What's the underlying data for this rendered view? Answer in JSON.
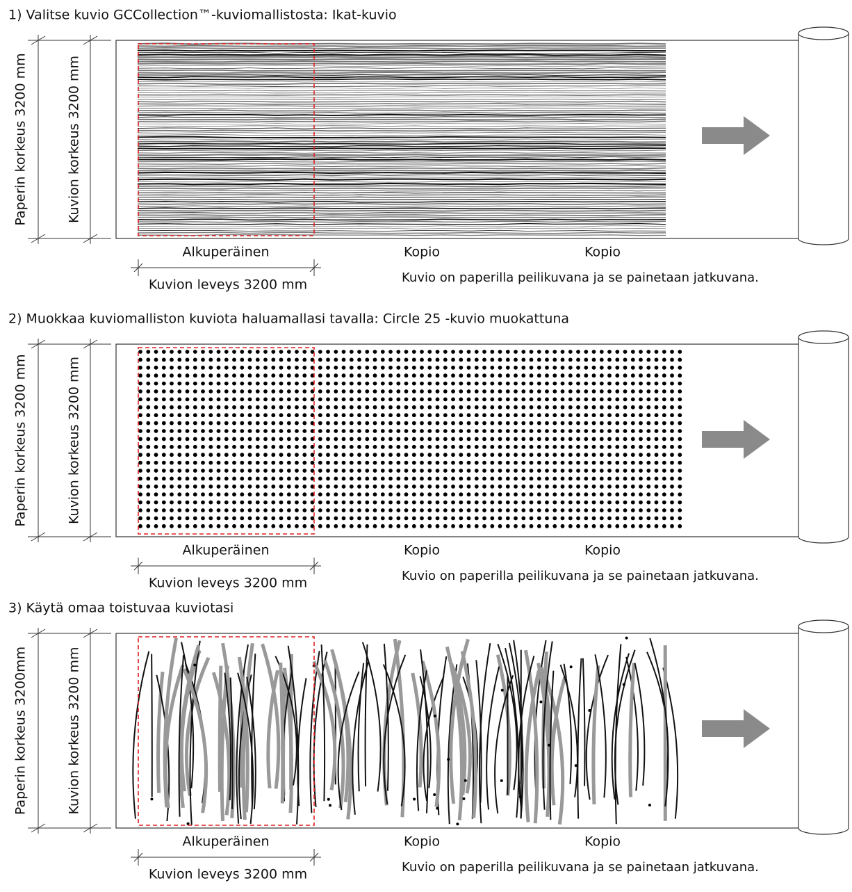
{
  "sections": [
    {
      "title": "1) Valitse kuvio GCCollection™-kuviomallistosta: Ikat-kuvio",
      "paper_height": "Paperin korkeus 3200 mm",
      "pattern_height": "Kuvion korkeus 3200 mm",
      "original": "Alkuperäinen",
      "copies": [
        "Kopio",
        "Kopio"
      ],
      "pattern_width": "Kuvion leveys 3200 mm",
      "note": "Kuvio on paperilla peilikuvana ja se painetaan jatkuvana."
    },
    {
      "title": "2) Muokkaa kuviomalliston kuviota haluamallasi tavalla: Circle 25 -kuvio muokattuna",
      "paper_height": "Paperin korkeus 3200 mm",
      "pattern_height": "Kuvion korkeus 3200 mm",
      "original": "Alkuperäinen",
      "copies": [
        "Kopio",
        "Kopio"
      ],
      "pattern_width": "Kuvion leveys 3200 mm",
      "note": "Kuvio on paperilla peilikuvana ja se painetaan jatkuvana."
    },
    {
      "title": "3) Käytä omaa toistuvaa kuviotasi",
      "paper_height": "Paperin korkeus 3200mm",
      "pattern_height": "Kuvion korkeus 3200 mm",
      "original": "Alkuperäinen",
      "copies": [
        "Kopio",
        "Kopio"
      ],
      "pattern_width": "Kuvion leveys 3200 mm",
      "note": "Kuvio on paperilla peilikuvana ja se painetaan jatkuvana."
    }
  ]
}
